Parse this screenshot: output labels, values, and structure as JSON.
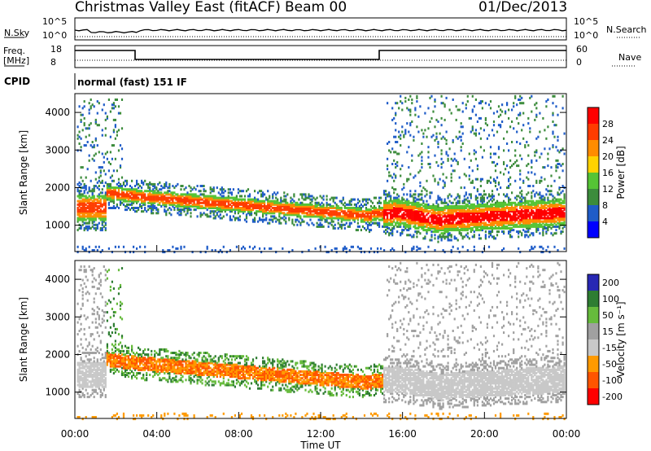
{
  "header": {
    "station": "Christmas Valley East (fitACF)",
    "beam": "Beam 00",
    "date": "01/Dec/2013"
  },
  "strip": {
    "nsky_label": "N.Sky",
    "nsky_ticks": [
      "10^5",
      "10^0"
    ],
    "nsearch_label": "N.Search",
    "freq_label": "Freq.",
    "freq_unit": "[MHz]",
    "freq_ticks": [
      "18",
      "8"
    ],
    "nave_label": "Nave",
    "nave_ticks": [
      "60",
      "0"
    ],
    "cpid_label": "CPID",
    "cpid_text": "normal (fast) 151 IF"
  },
  "colors": {
    "power": [
      "#0000ff",
      "#1f5cc8",
      "#3c8c3c",
      "#55c435",
      "#ffd200",
      "#ff8c00",
      "#ff3c00",
      "#ff0000"
    ],
    "velocity": [
      "#2828b4",
      "#2e7d32",
      "#66bb3c",
      "#a0a0a0",
      "#c8c8c8",
      "#ff9a00",
      "#ff5500",
      "#ff0000"
    ]
  },
  "chart_data": [
    {
      "type": "heatmap",
      "name": "power",
      "ylabel": "Slant Range [km]",
      "yticks": [
        "1000",
        "2000",
        "3000",
        "4000"
      ],
      "ylim": [
        300,
        4500
      ],
      "xlim": [
        0,
        24
      ],
      "colorbar_label": "Power [dB]",
      "colorbar_ticks": [
        "4",
        "8",
        "12",
        "16",
        "20",
        "24",
        "28"
      ],
      "clim": [
        0,
        30
      ]
    },
    {
      "type": "heatmap",
      "name": "velocity",
      "ylabel": "Slant Range [km]",
      "yticks": [
        "1000",
        "2000",
        "3000",
        "4000"
      ],
      "ylim": [
        300,
        4500
      ],
      "xlim": [
        0,
        24
      ],
      "xticks": [
        "00:00",
        "04:00",
        "08:00",
        "12:00",
        "16:00",
        "20:00",
        "00:00"
      ],
      "xlabel": "Time UT",
      "colorbar_label": "Velocity [m s⁻¹]",
      "colorbar_ticks": [
        "200",
        "100",
        "50",
        "15",
        "-15",
        "-50",
        "-100",
        "-200"
      ]
    }
  ]
}
